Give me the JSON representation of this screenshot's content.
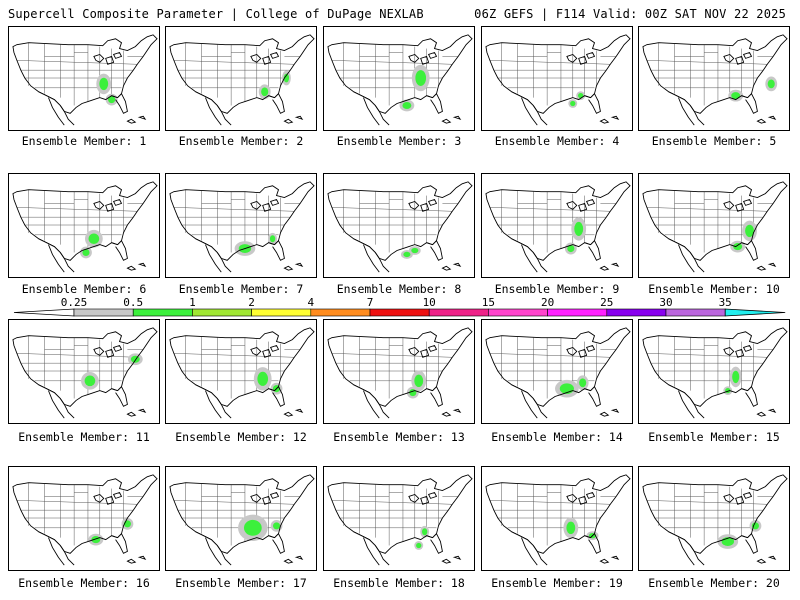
{
  "header": {
    "left": "Supercell Composite Parameter | College of DuPage NEXLAB",
    "right": "06Z GEFS | F114 Valid: 00Z SAT NOV 22 2025"
  },
  "members": [
    {
      "label": "Ensemble Member: 1"
    },
    {
      "label": "Ensemble Member: 2"
    },
    {
      "label": "Ensemble Member: 3"
    },
    {
      "label": "Ensemble Member: 4"
    },
    {
      "label": "Ensemble Member: 5"
    },
    {
      "label": "Ensemble Member: 6"
    },
    {
      "label": "Ensemble Member: 7"
    },
    {
      "label": "Ensemble Member: 8"
    },
    {
      "label": "Ensemble Member: 9"
    },
    {
      "label": "Ensemble Member: 10"
    },
    {
      "label": "Ensemble Member: 11"
    },
    {
      "label": "Ensemble Member: 12"
    },
    {
      "label": "Ensemble Member: 13"
    },
    {
      "label": "Ensemble Member: 14"
    },
    {
      "label": "Ensemble Member: 15"
    },
    {
      "label": "Ensemble Member: 16"
    },
    {
      "label": "Ensemble Member: 17"
    },
    {
      "label": "Ensemble Member: 18"
    },
    {
      "label": "Ensemble Member: 19"
    },
    {
      "label": "Ensemble Member: 20"
    }
  ],
  "colorbar": {
    "levels": [
      "0.25",
      "0.5",
      "1",
      "2",
      "4",
      "7",
      "10",
      "15",
      "20",
      "25",
      "30",
      "35"
    ],
    "colors": [
      "#c8c8c8",
      "#3cf03c",
      "#a0e632",
      "#ffff32",
      "#ff8c1e",
      "#ee1111",
      "#ee2288",
      "#ff44cc",
      "#ff22ff",
      "#8800ee",
      "#bb66dd",
      "#22eeee"
    ]
  }
}
